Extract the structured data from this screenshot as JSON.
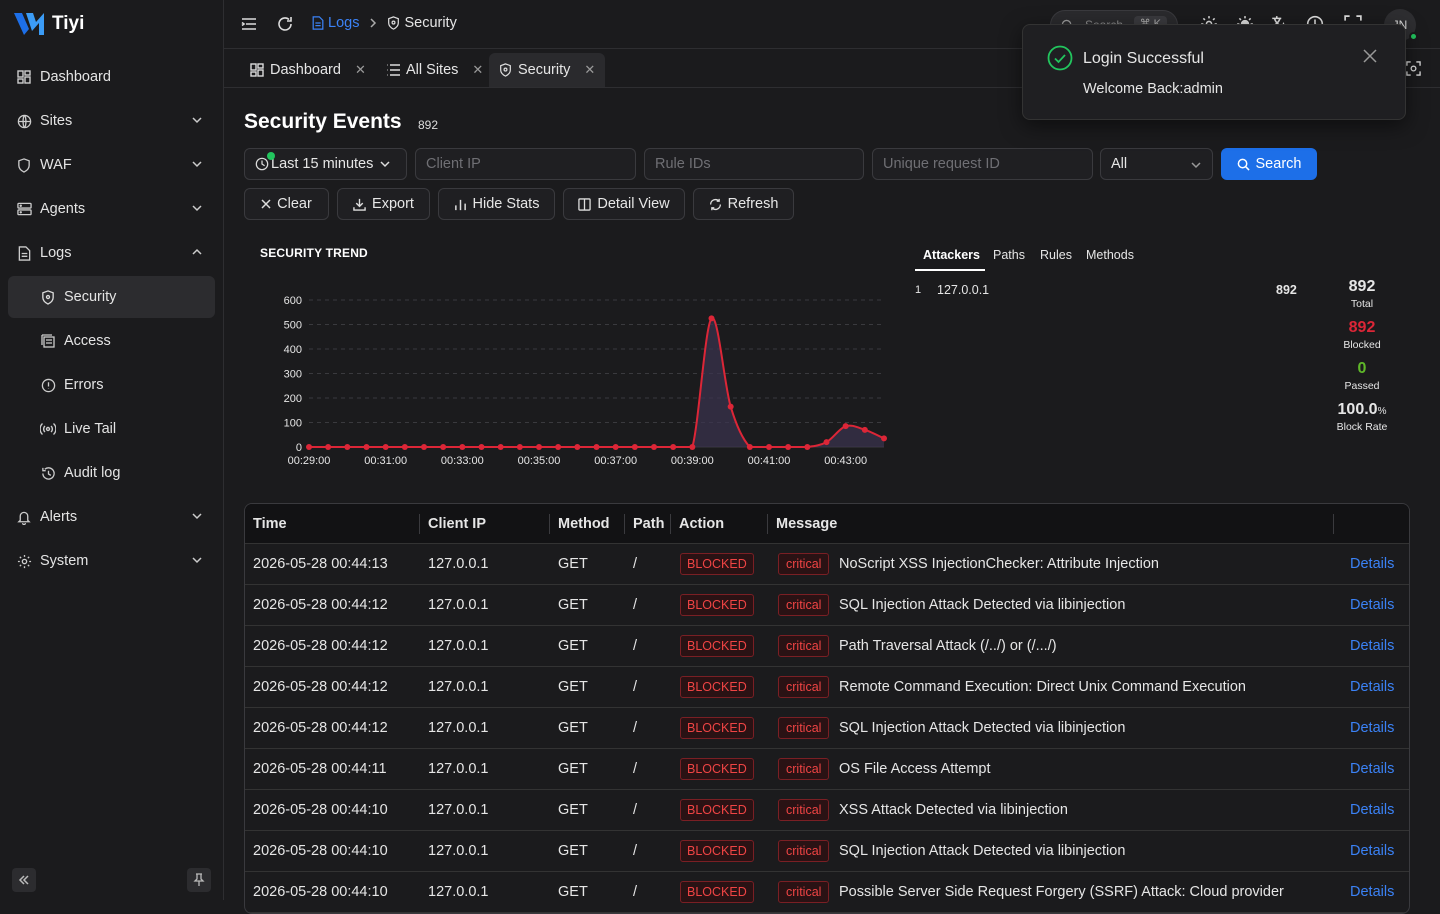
{
  "app": {
    "name": "Tiyi"
  },
  "sidebar": {
    "items": [
      {
        "label": "Dashboard"
      },
      {
        "label": "Sites"
      },
      {
        "label": "WAF"
      },
      {
        "label": "Agents"
      },
      {
        "label": "Logs"
      },
      {
        "label": "Security"
      },
      {
        "label": "Access"
      },
      {
        "label": "Errors"
      },
      {
        "label": "Live Tail"
      },
      {
        "label": "Audit log"
      },
      {
        "label": "Alerts"
      },
      {
        "label": "System"
      }
    ]
  },
  "topbar": {
    "breadcrumb": {
      "parent": "Logs",
      "current": "Security"
    },
    "search": {
      "placeholder": "Search",
      "shortcut": "⌘ K"
    },
    "avatar_initials": "JN"
  },
  "tabs": [
    {
      "label": "Dashboard"
    },
    {
      "label": "All Sites"
    },
    {
      "label": "Security"
    }
  ],
  "page": {
    "title": "Security Events",
    "count": "892",
    "filters": {
      "time_range": "Last 15 minutes",
      "client_ip_placeholder": "Client IP",
      "rule_ids_placeholder": "Rule IDs",
      "request_id_placeholder": "Unique request ID",
      "action_select": "All",
      "search_label": "Search"
    },
    "actions": {
      "clear": "Clear",
      "export": "Export",
      "hide_stats": "Hide Stats",
      "detail_view": "Detail View",
      "refresh": "Refresh"
    }
  },
  "chart_data": {
    "type": "line",
    "title": "SECURITY TREND",
    "x_ticks": [
      "00:29:00",
      "00:31:00",
      "00:33:00",
      "00:35:00",
      "00:37:00",
      "00:39:00",
      "00:41:00",
      "00:43:00"
    ],
    "y_ticks": [
      0,
      100,
      200,
      300,
      400,
      500,
      600
    ],
    "ylim": [
      0,
      600
    ],
    "grid": true,
    "x": [
      0,
      0.5,
      1,
      1.5,
      2,
      2.5,
      3,
      3.5,
      4,
      4.5,
      5,
      5.5,
      6,
      6.5,
      7,
      7.5,
      8,
      8.5,
      9,
      9.5,
      10,
      10.5,
      11,
      11.5,
      12,
      12.5,
      13,
      13.5,
      14,
      14.5,
      15
    ],
    "values": [
      0,
      0,
      0,
      0,
      0,
      0,
      0,
      0,
      0,
      0,
      0,
      0,
      0,
      0,
      0,
      0,
      0,
      0,
      0,
      0,
      0,
      525,
      165,
      0,
      0,
      0,
      0,
      20,
      85,
      70,
      35
    ],
    "color": "#dc2637"
  },
  "stats_tabs": [
    {
      "label": "Attackers"
    },
    {
      "label": "Paths"
    },
    {
      "label": "Rules"
    },
    {
      "label": "Methods"
    }
  ],
  "top_attackers": [
    {
      "rank": "1",
      "ip": "127.0.0.1",
      "count": "892"
    }
  ],
  "stats": {
    "total": {
      "value": "892",
      "label": "Total"
    },
    "blocked": {
      "value": "892",
      "label": "Blocked",
      "color": "#dc2637"
    },
    "passed": {
      "value": "0",
      "label": "Passed",
      "color": "#5fb829"
    },
    "block_rate": {
      "value": "100.0",
      "unit": "%",
      "label": "Block Rate"
    }
  },
  "table": {
    "columns": [
      "Time",
      "Client IP",
      "Method",
      "Path",
      "Action",
      "Message"
    ],
    "rows": [
      {
        "time": "2026-05-28 00:44:13",
        "ip": "127.0.0.1",
        "method": "GET",
        "path": "/",
        "action": "BLOCKED",
        "severity": "critical",
        "message": "NoScript XSS InjectionChecker: Attribute Injection",
        "details": "Details"
      },
      {
        "time": "2026-05-28 00:44:12",
        "ip": "127.0.0.1",
        "method": "GET",
        "path": "/",
        "action": "BLOCKED",
        "severity": "critical",
        "message": "SQL Injection Attack Detected via libinjection",
        "details": "Details"
      },
      {
        "time": "2026-05-28 00:44:12",
        "ip": "127.0.0.1",
        "method": "GET",
        "path": "/",
        "action": "BLOCKED",
        "severity": "critical",
        "message": "Path Traversal Attack (/../) or (/.../)",
        "details": "Details"
      },
      {
        "time": "2026-05-28 00:44:12",
        "ip": "127.0.0.1",
        "method": "GET",
        "path": "/",
        "action": "BLOCKED",
        "severity": "critical",
        "message": "Remote Command Execution: Direct Unix Command Execution",
        "details": "Details"
      },
      {
        "time": "2026-05-28 00:44:12",
        "ip": "127.0.0.1",
        "method": "GET",
        "path": "/",
        "action": "BLOCKED",
        "severity": "critical",
        "message": "SQL Injection Attack Detected via libinjection",
        "details": "Details"
      },
      {
        "time": "2026-05-28 00:44:11",
        "ip": "127.0.0.1",
        "method": "GET",
        "path": "/",
        "action": "BLOCKED",
        "severity": "critical",
        "message": "OS File Access Attempt",
        "details": "Details"
      },
      {
        "time": "2026-05-28 00:44:10",
        "ip": "127.0.0.1",
        "method": "GET",
        "path": "/",
        "action": "BLOCKED",
        "severity": "critical",
        "message": "XSS Attack Detected via libinjection",
        "details": "Details"
      },
      {
        "time": "2026-05-28 00:44:10",
        "ip": "127.0.0.1",
        "method": "GET",
        "path": "/",
        "action": "BLOCKED",
        "severity": "critical",
        "message": "SQL Injection Attack Detected via libinjection",
        "details": "Details"
      },
      {
        "time": "2026-05-28 00:44:10",
        "ip": "127.0.0.1",
        "method": "GET",
        "path": "/",
        "action": "BLOCKED",
        "severity": "critical",
        "message": "Possible Server Side Request Forgery (SSRF) Attack: Cloud provider",
        "details": "Details"
      }
    ]
  },
  "toast": {
    "title": "Login Successful",
    "message": "Welcome Back:admin"
  }
}
